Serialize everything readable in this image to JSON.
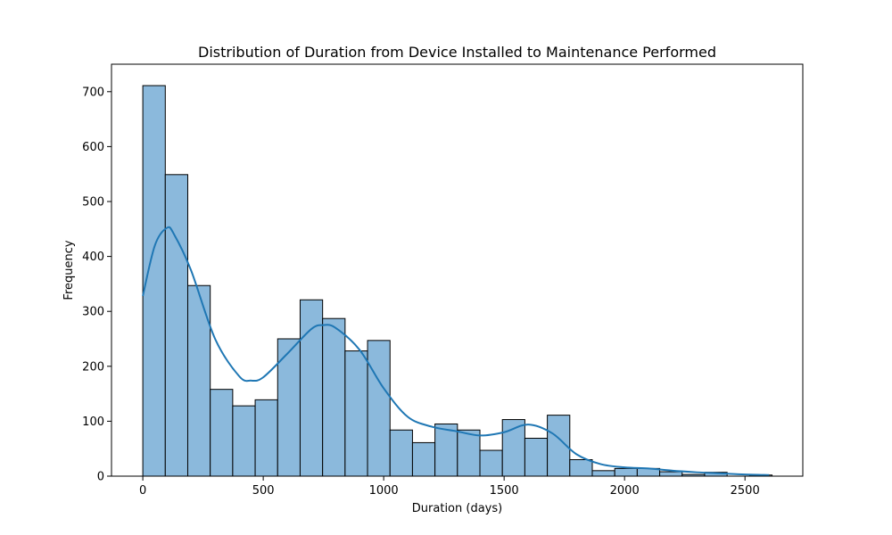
{
  "chart_data": {
    "type": "bar",
    "title": "Distribution of Duration from Device Installed to Maintenance Performed",
    "xlabel": "Duration (days)",
    "ylabel": "Frequency",
    "bin_width": 93.3,
    "bin_start": 0,
    "bins": [
      {
        "x0": 0,
        "x1": 93.3,
        "count": 711
      },
      {
        "x0": 93.3,
        "x1": 186.6,
        "count": 549
      },
      {
        "x0": 186.6,
        "x1": 279.9,
        "count": 347
      },
      {
        "x0": 279.9,
        "x1": 373.2,
        "count": 158
      },
      {
        "x0": 373.2,
        "x1": 466.5,
        "count": 128
      },
      {
        "x0": 466.5,
        "x1": 559.8,
        "count": 139
      },
      {
        "x0": 559.8,
        "x1": 653.1,
        "count": 250
      },
      {
        "x0": 653.1,
        "x1": 746.4,
        "count": 321
      },
      {
        "x0": 746.4,
        "x1": 839.7,
        "count": 287
      },
      {
        "x0": 839.7,
        "x1": 933.0,
        "count": 228
      },
      {
        "x0": 933.0,
        "x1": 1026.3,
        "count": 247
      },
      {
        "x0": 1026.3,
        "x1": 1119.6,
        "count": 84
      },
      {
        "x0": 1119.6,
        "x1": 1212.9,
        "count": 61
      },
      {
        "x0": 1212.9,
        "x1": 1306.2,
        "count": 95
      },
      {
        "x0": 1306.2,
        "x1": 1399.5,
        "count": 84
      },
      {
        "x0": 1399.5,
        "x1": 1492.8,
        "count": 47
      },
      {
        "x0": 1492.8,
        "x1": 1586.1,
        "count": 103
      },
      {
        "x0": 1586.1,
        "x1": 1679.4,
        "count": 69
      },
      {
        "x0": 1679.4,
        "x1": 1772.7,
        "count": 111
      },
      {
        "x0": 1772.7,
        "x1": 1866.0,
        "count": 30
      },
      {
        "x0": 1866.0,
        "x1": 1959.3,
        "count": 10
      },
      {
        "x0": 1959.3,
        "x1": 2052.6,
        "count": 14
      },
      {
        "x0": 2052.6,
        "x1": 2145.9,
        "count": 14
      },
      {
        "x0": 2145.9,
        "x1": 2239.2,
        "count": 8
      },
      {
        "x0": 2239.2,
        "x1": 2332.5,
        "count": 3
      },
      {
        "x0": 2332.5,
        "x1": 2425.8,
        "count": 7
      },
      {
        "x0": 2425.8,
        "x1": 2519.1,
        "count": 0
      },
      {
        "x0": 2519.1,
        "x1": 2612.4,
        "count": 2
      }
    ],
    "kde": {
      "x": [
        0,
        50,
        100,
        130,
        200,
        300,
        400,
        450,
        500,
        600,
        700,
        750,
        800,
        900,
        1000,
        1100,
        1200,
        1300,
        1400,
        1500,
        1600,
        1700,
        1800,
        1900,
        2000,
        2100,
        2200,
        2300,
        2400,
        2500,
        2600
      ],
      "y": [
        328,
        420,
        452,
        440,
        375,
        250,
        182,
        174,
        180,
        223,
        268,
        275,
        270,
        230,
        160,
        108,
        90,
        82,
        74,
        80,
        94,
        78,
        40,
        22,
        16,
        14,
        10,
        7,
        5,
        3,
        2
      ]
    },
    "xlim": [
      -130,
      2740
    ],
    "ylim": [
      0,
      750
    ],
    "xticks": [
      0,
      500,
      1000,
      1500,
      2000,
      2500
    ],
    "yticks": [
      0,
      100,
      200,
      300,
      400,
      500,
      600,
      700
    ],
    "colors": {
      "bar_fill": "#8bb9dc",
      "bar_edge": "#000000",
      "kde_line": "#1f77b4"
    },
    "grid": false
  }
}
